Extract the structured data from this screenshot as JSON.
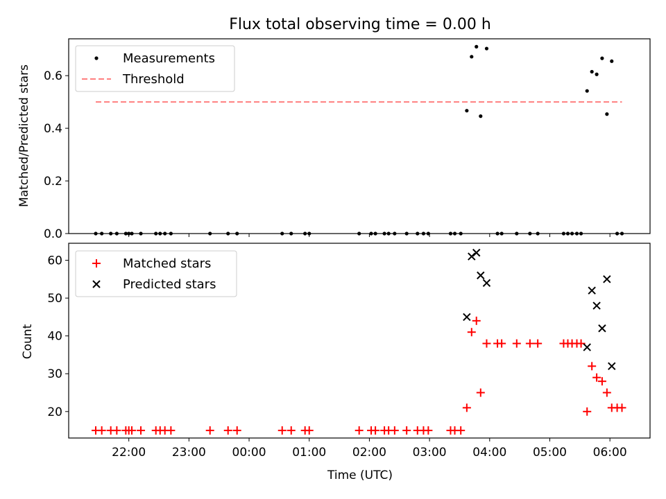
{
  "title": "Flux total observing time = 0.00 h",
  "colors": {
    "measurement": "#000000",
    "threshold": "#ff7f7f",
    "matched": "#ff0000",
    "predicted": "#000000"
  },
  "chart_data": [
    {
      "type": "scatter",
      "ylabel": "Matched/Predicted stars",
      "xlabel": "",
      "xlim_hours": [
        21.0,
        30.667
      ],
      "ylim": [
        0,
        0.74
      ],
      "yticks": [
        0.0,
        0.2,
        0.4,
        0.6
      ],
      "ytick_labels": [
        "0.0",
        "0.2",
        "0.4",
        "0.6"
      ],
      "threshold": {
        "name": "Threshold",
        "value": 0.5,
        "x_range_hours": [
          21.45,
          30.2
        ]
      },
      "legend": {
        "location": "top-left",
        "entries": [
          "Measurements",
          "Threshold"
        ]
      },
      "series": [
        {
          "name": "Measurements",
          "points": [
            [
              21.45,
              0
            ],
            [
              21.55,
              0
            ],
            [
              21.7,
              0
            ],
            [
              21.8,
              0
            ],
            [
              21.95,
              0
            ],
            [
              22.0,
              0
            ],
            [
              22.05,
              0
            ],
            [
              22.2,
              0
            ],
            [
              22.45,
              0
            ],
            [
              22.52,
              0
            ],
            [
              22.6,
              0
            ],
            [
              22.7,
              0
            ],
            [
              23.35,
              0
            ],
            [
              23.65,
              0
            ],
            [
              23.8,
              0
            ],
            [
              24.55,
              0
            ],
            [
              24.7,
              0
            ],
            [
              24.93,
              0
            ],
            [
              25.0,
              0
            ],
            [
              25.83,
              0
            ],
            [
              26.03,
              0
            ],
            [
              26.1,
              0
            ],
            [
              26.25,
              0
            ],
            [
              26.32,
              0
            ],
            [
              26.42,
              0
            ],
            [
              26.62,
              0
            ],
            [
              26.8,
              0
            ],
            [
              26.9,
              0
            ],
            [
              26.98,
              0
            ],
            [
              27.35,
              0
            ],
            [
              27.42,
              0
            ],
            [
              27.52,
              0
            ],
            [
              27.62,
              0.467
            ],
            [
              27.7,
              0.672
            ],
            [
              27.78,
              0.71
            ],
            [
              27.85,
              0.446
            ],
            [
              27.95,
              0.703
            ],
            [
              28.13,
              0
            ],
            [
              28.2,
              0
            ],
            [
              28.45,
              0
            ],
            [
              28.67,
              0
            ],
            [
              28.8,
              0
            ],
            [
              29.23,
              0
            ],
            [
              29.3,
              0
            ],
            [
              29.37,
              0
            ],
            [
              29.45,
              0
            ],
            [
              29.52,
              0
            ],
            [
              29.62,
              0.542
            ],
            [
              29.7,
              0.615
            ],
            [
              29.78,
              0.605
            ],
            [
              29.87,
              0.666
            ],
            [
              29.95,
              0.454
            ],
            [
              30.03,
              0.655
            ],
            [
              30.12,
              0
            ],
            [
              30.2,
              0
            ]
          ]
        }
      ]
    },
    {
      "type": "scatter",
      "xlabel": "Time (UTC)",
      "ylabel": "Count",
      "xlim_hours": [
        21.0,
        30.667
      ],
      "ylim": [
        13,
        64.5
      ],
      "yticks": [
        20,
        30,
        40,
        50,
        60
      ],
      "ytick_labels": [
        "20",
        "30",
        "40",
        "50",
        "60"
      ],
      "xticks_hours": [
        22,
        23,
        24,
        25,
        26,
        27,
        28,
        29,
        30
      ],
      "xtick_labels": [
        "22:00",
        "23:00",
        "00:00",
        "01:00",
        "02:00",
        "03:00",
        "04:00",
        "05:00",
        "06:00"
      ],
      "legend": {
        "location": "top-left",
        "entries": [
          "Matched stars",
          "Predicted stars"
        ]
      },
      "series": [
        {
          "name": "Matched stars",
          "marker": "plus",
          "points": [
            [
              21.45,
              15
            ],
            [
              21.55,
              15
            ],
            [
              21.7,
              15
            ],
            [
              21.8,
              15
            ],
            [
              21.95,
              15
            ],
            [
              22.0,
              15
            ],
            [
              22.05,
              15
            ],
            [
              22.2,
              15
            ],
            [
              22.45,
              15
            ],
            [
              22.52,
              15
            ],
            [
              22.6,
              15
            ],
            [
              22.7,
              15
            ],
            [
              23.35,
              15
            ],
            [
              23.65,
              15
            ],
            [
              23.8,
              15
            ],
            [
              24.55,
              15
            ],
            [
              24.7,
              15
            ],
            [
              24.93,
              15
            ],
            [
              25.0,
              15
            ],
            [
              25.83,
              15
            ],
            [
              26.03,
              15
            ],
            [
              26.1,
              15
            ],
            [
              26.25,
              15
            ],
            [
              26.32,
              15
            ],
            [
              26.42,
              15
            ],
            [
              26.62,
              15
            ],
            [
              26.8,
              15
            ],
            [
              26.9,
              15
            ],
            [
              26.98,
              15
            ],
            [
              27.35,
              15
            ],
            [
              27.42,
              15
            ],
            [
              27.52,
              15
            ],
            [
              27.62,
              21
            ],
            [
              27.7,
              41
            ],
            [
              27.78,
              44
            ],
            [
              27.85,
              25
            ],
            [
              27.95,
              38
            ],
            [
              28.13,
              38
            ],
            [
              28.2,
              38
            ],
            [
              28.45,
              38
            ],
            [
              28.67,
              38
            ],
            [
              28.8,
              38
            ],
            [
              29.23,
              38
            ],
            [
              29.3,
              38
            ],
            [
              29.37,
              38
            ],
            [
              29.45,
              38
            ],
            [
              29.52,
              38
            ],
            [
              29.62,
              20
            ],
            [
              29.7,
              32
            ],
            [
              29.78,
              29
            ],
            [
              29.87,
              28
            ],
            [
              29.95,
              25
            ],
            [
              30.03,
              21
            ],
            [
              30.12,
              21
            ],
            [
              30.2,
              21
            ]
          ]
        },
        {
          "name": "Predicted stars",
          "marker": "x",
          "points": [
            [
              27.62,
              45
            ],
            [
              27.7,
              61
            ],
            [
              27.78,
              62
            ],
            [
              27.85,
              56
            ],
            [
              27.95,
              54
            ],
            [
              29.62,
              37
            ],
            [
              29.7,
              52
            ],
            [
              29.78,
              48
            ],
            [
              29.87,
              42
            ],
            [
              29.95,
              55
            ],
            [
              30.03,
              32
            ]
          ]
        }
      ]
    }
  ]
}
